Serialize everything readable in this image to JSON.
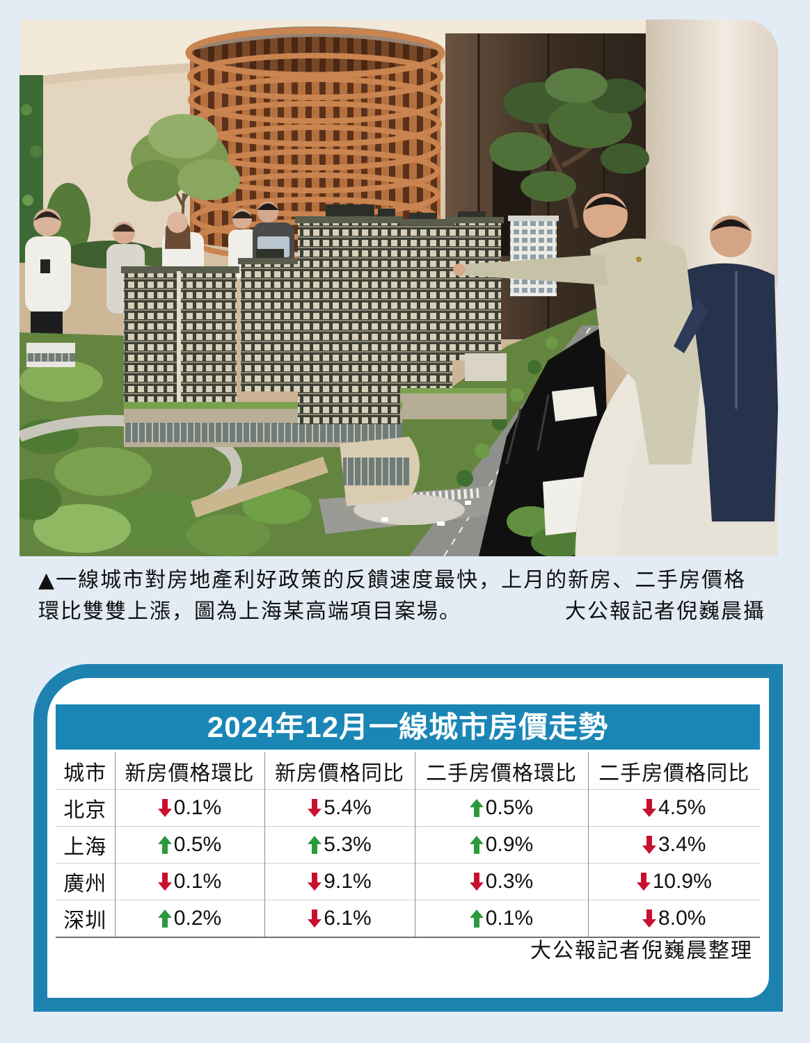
{
  "caption": {
    "line1": "▲一線城市對房地產利好政策的反饋速度最快，上月的新房、二手房價格",
    "line2": "環比雙雙上漲，圖為上海某高端項目案場。",
    "credit": "大公報記者倪巍晨攝"
  },
  "table": {
    "title": "2024年12月一線城市房價走勢",
    "headers": [
      "城市",
      "新房價格環比",
      "新房價格同比",
      "二手房價格環比",
      "二手房價格同比"
    ],
    "rows": [
      {
        "city": "北京",
        "values": [
          {
            "icon": "arrow-down-icon",
            "value": "0.1%"
          },
          {
            "icon": "arrow-down-icon",
            "value": "5.4%"
          },
          {
            "icon": "arrow-up-icon",
            "value": "0.5%"
          },
          {
            "icon": "arrow-down-icon",
            "value": "4.5%"
          }
        ]
      },
      {
        "city": "上海",
        "values": [
          {
            "icon": "arrow-up-icon",
            "value": "0.5%"
          },
          {
            "icon": "arrow-up-icon",
            "value": "5.3%"
          },
          {
            "icon": "arrow-up-icon",
            "value": "0.9%"
          },
          {
            "icon": "arrow-down-icon",
            "value": "3.4%"
          }
        ]
      },
      {
        "city": "廣州",
        "values": [
          {
            "icon": "arrow-down-icon",
            "value": "0.1%"
          },
          {
            "icon": "arrow-down-icon",
            "value": "9.1%"
          },
          {
            "icon": "arrow-down-icon",
            "value": "0.3%"
          },
          {
            "icon": "arrow-down-icon",
            "value": "10.9%"
          }
        ]
      },
      {
        "city": "深圳",
        "values": [
          {
            "icon": "arrow-up-icon",
            "value": "0.2%"
          },
          {
            "icon": "arrow-down-icon",
            "value": "6.1%"
          },
          {
            "icon": "arrow-up-icon",
            "value": "0.1%"
          },
          {
            "icon": "arrow-down-icon",
            "value": "8.0%"
          }
        ]
      }
    ],
    "source": "大公報記者倪巍晨整理"
  },
  "colors": {
    "page_background": "#e3ecf5",
    "frame": "#1d82b0",
    "title_bar": "#1a86b6",
    "up_arrow": "#2b9a3f",
    "down_arrow": "#c8102e"
  }
}
